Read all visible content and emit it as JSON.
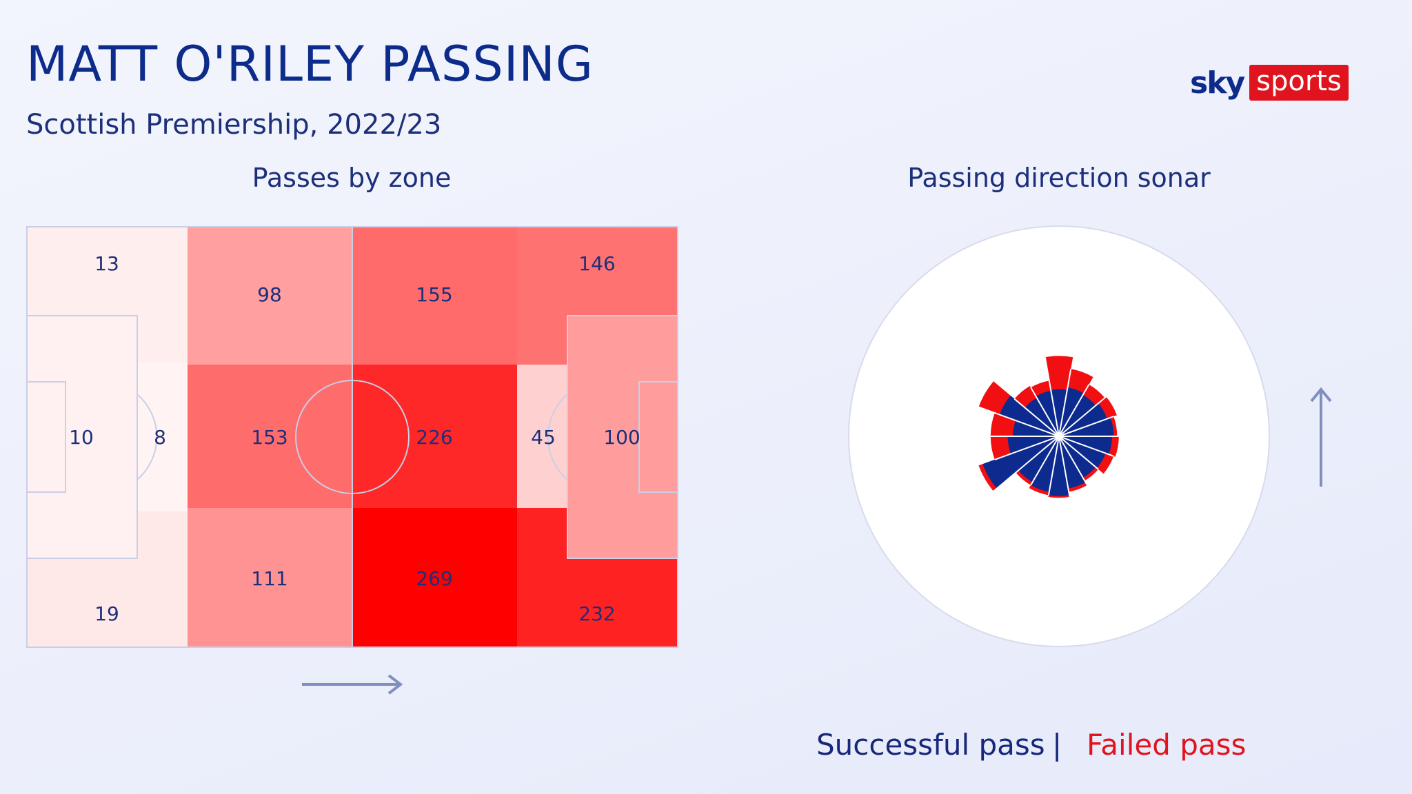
{
  "header": {
    "title": "MATT O'RILEY PASSING",
    "subtitle": "Scottish Premiership, 2022/23"
  },
  "logo": {
    "sky": "sky",
    "sports": "sports"
  },
  "sections": {
    "zones_title": "Passes by zone",
    "sonar_title": "Passing direction sonar"
  },
  "legend": {
    "successful": "Successful pass",
    "separator": "|",
    "failed": "Failed pass"
  },
  "colors": {
    "navy": "#0c2b8a",
    "successful": "#0d2a8f",
    "failed": "#f20f12",
    "zone_max": "#ff0000",
    "zone_min": "#ffffff",
    "arrow": "#7f8fbf"
  },
  "chart_data": [
    {
      "type": "heatmap",
      "title": "Passes by zone",
      "attack_direction": "left-to-right",
      "max_value": 269,
      "zones": [
        {
          "id": "def-left",
          "value": 13
        },
        {
          "id": "def-box",
          "value": 10
        },
        {
          "id": "def-box-edge",
          "value": 8
        },
        {
          "id": "def-right",
          "value": 19
        },
        {
          "id": "own-half-left",
          "value": 98
        },
        {
          "id": "own-half-centre",
          "value": 153
        },
        {
          "id": "own-half-right",
          "value": 111
        },
        {
          "id": "opp-half-left",
          "value": 155
        },
        {
          "id": "opp-half-centre",
          "value": 226
        },
        {
          "id": "opp-half-right",
          "value": 269
        },
        {
          "id": "att-left",
          "value": 146
        },
        {
          "id": "att-box-edge",
          "value": 45
        },
        {
          "id": "att-box",
          "value": 100
        },
        {
          "id": "att-right",
          "value": 232
        }
      ]
    },
    {
      "type": "polar-bar",
      "title": "Passing direction sonar",
      "orientation": "0° = attacking direction (up), clockwise",
      "series": [
        "Successful pass",
        "Failed pass"
      ],
      "sectors": [
        {
          "angle": 0,
          "successful": 0.55,
          "total": 0.94
        },
        {
          "angle": 20,
          "successful": 0.58,
          "total": 0.8
        },
        {
          "angle": 40,
          "successful": 0.56,
          "total": 0.7
        },
        {
          "angle": 60,
          "successful": 0.6,
          "total": 0.72
        },
        {
          "angle": 80,
          "successful": 0.64,
          "total": 0.68
        },
        {
          "angle": 100,
          "successful": 0.62,
          "total": 0.7
        },
        {
          "angle": 120,
          "successful": 0.58,
          "total": 0.68
        },
        {
          "angle": 140,
          "successful": 0.56,
          "total": 0.6
        },
        {
          "angle": 160,
          "successful": 0.62,
          "total": 0.66
        },
        {
          "angle": 180,
          "successful": 0.7,
          "total": 0.72
        },
        {
          "angle": 200,
          "successful": 0.66,
          "total": 0.7
        },
        {
          "angle": 220,
          "successful": 0.62,
          "total": 0.66
        },
        {
          "angle": 240,
          "successful": 0.95,
          "total": 1.0
        },
        {
          "angle": 260,
          "successful": 0.6,
          "total": 0.8
        },
        {
          "angle": 280,
          "successful": 0.54,
          "total": 0.8
        },
        {
          "angle": 300,
          "successful": 0.74,
          "total": 1.0
        },
        {
          "angle": 320,
          "successful": 0.52,
          "total": 0.68
        },
        {
          "angle": 340,
          "successful": 0.54,
          "total": 0.66
        }
      ]
    }
  ]
}
